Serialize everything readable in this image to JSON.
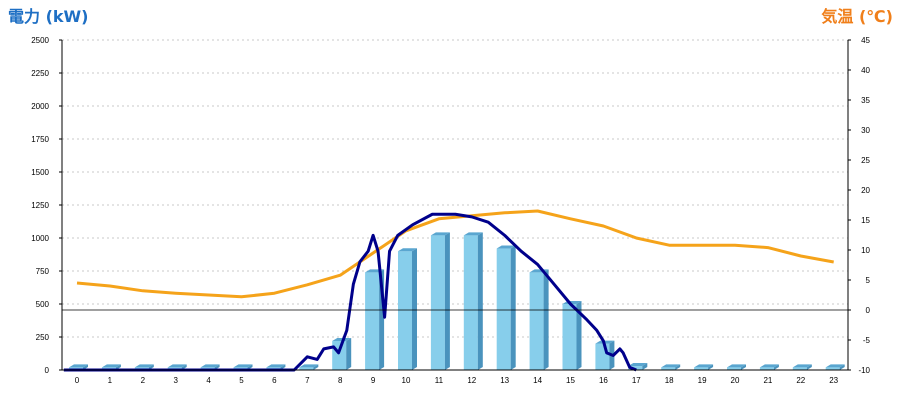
{
  "chart_data": {
    "type": "bar",
    "left_axis_title": "電力 (kW)",
    "right_axis_title": "気温 (℃)",
    "left_axis": {
      "ylim": [
        0,
        2500
      ],
      "ticks": [
        "0",
        "250",
        "500",
        "750",
        "1000",
        "1250",
        "1500",
        "1750",
        "2000",
        "2250",
        "2500"
      ]
    },
    "right_axis": {
      "ylim": [
        -10,
        45
      ],
      "ticks": [
        "-10",
        "-5",
        "0",
        "5",
        "10",
        "15",
        "20",
        "25",
        "30",
        "35",
        "40",
        "45"
      ]
    },
    "categories": [
      "0",
      "1",
      "2",
      "3",
      "4",
      "5",
      "6",
      "7",
      "8",
      "9",
      "10",
      "11",
      "12",
      "13",
      "14",
      "15",
      "16",
      "17",
      "18",
      "19",
      "20",
      "21",
      "22",
      "23"
    ],
    "grid": true,
    "legend": "none",
    "bars": {
      "axis": "left",
      "color": "#87ceeb",
      "values": [
        20,
        20,
        20,
        20,
        20,
        20,
        20,
        20,
        220,
        740,
        900,
        1020,
        1020,
        920,
        740,
        500,
        200,
        30,
        20,
        20,
        20,
        20,
        20,
        20
      ]
    },
    "power_line": {
      "axis": "left",
      "color": "#00008b",
      "points": [
        [
          -0.4,
          0
        ],
        [
          6.6,
          0
        ],
        [
          7.0,
          100
        ],
        [
          7.3,
          80
        ],
        [
          7.5,
          160
        ],
        [
          7.8,
          175
        ],
        [
          7.95,
          130
        ],
        [
          8.2,
          300
        ],
        [
          8.4,
          650
        ],
        [
          8.6,
          820
        ],
        [
          8.85,
          900
        ],
        [
          9.0,
          1020
        ],
        [
          9.15,
          900
        ],
        [
          9.35,
          400
        ],
        [
          9.5,
          900
        ],
        [
          9.75,
          1020
        ],
        [
          10.2,
          1100
        ],
        [
          10.8,
          1180
        ],
        [
          11.5,
          1180
        ],
        [
          12.0,
          1160
        ],
        [
          12.5,
          1120
        ],
        [
          13.0,
          1020
        ],
        [
          13.5,
          900
        ],
        [
          14.0,
          800
        ],
        [
          14.5,
          650
        ],
        [
          15.0,
          500
        ],
        [
          15.5,
          380
        ],
        [
          15.8,
          300
        ],
        [
          16.0,
          220
        ],
        [
          16.1,
          130
        ],
        [
          16.3,
          110
        ],
        [
          16.5,
          160
        ],
        [
          16.6,
          130
        ],
        [
          16.8,
          20
        ],
        [
          17.0,
          0
        ]
      ]
    },
    "temperature_line": {
      "axis": "right",
      "color": "#f5a31a",
      "values": [
        4.5,
        4.0,
        3.2,
        2.8,
        2.5,
        2.2,
        2.8,
        4.2,
        5.8,
        9.5,
        13.2,
        15.2,
        15.7,
        16.2,
        16.5,
        15.2,
        14.0,
        12.0,
        10.8,
        10.8,
        10.8,
        10.4,
        9.0,
        8.0
      ]
    }
  }
}
